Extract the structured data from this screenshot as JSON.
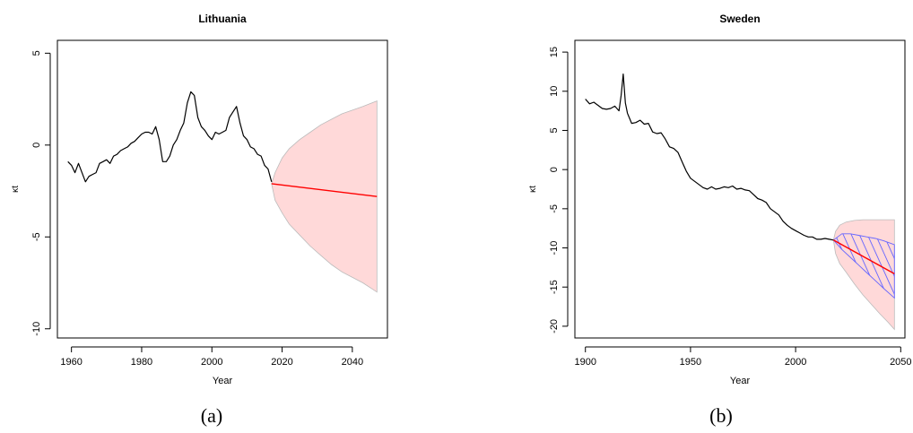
{
  "captions": {
    "a": "(a)",
    "b": "(b)"
  },
  "chart_data": [
    {
      "type": "line",
      "title": "Lithuania",
      "xlabel": "Year",
      "ylabel": "κt",
      "xlim": [
        1956,
        2050
      ],
      "ylim": [
        -10.5,
        5.7
      ],
      "xticks": [
        "1960",
        "1980",
        "2000",
        "2020",
        "2040"
      ],
      "yticks": [
        "5",
        "0",
        "-5",
        "-10"
      ],
      "grid": false,
      "series": [
        {
          "role": "observed",
          "color": "#000000",
          "x": [
            1959,
            1960,
            1961,
            1962,
            1963,
            1964,
            1965,
            1966,
            1967,
            1968,
            1969,
            1970,
            1971,
            1972,
            1973,
            1974,
            1975,
            1976,
            1977,
            1978,
            1979,
            1980,
            1981,
            1982,
            1983,
            1984,
            1985,
            1986,
            1987,
            1988,
            1989,
            1990,
            1991,
            1992,
            1993,
            1994,
            1995,
            1996,
            1997,
            1998,
            1999,
            2000,
            2001,
            2002,
            2003,
            2004,
            2005,
            2006,
            2007,
            2008,
            2009,
            2010,
            2011,
            2012,
            2013,
            2014,
            2015,
            2016,
            2017
          ],
          "y": [
            -0.9,
            -1.1,
            -1.5,
            -1.0,
            -1.5,
            -2.0,
            -1.7,
            -1.6,
            -1.5,
            -1.0,
            -0.9,
            -0.8,
            -1.0,
            -0.6,
            -0.5,
            -0.3,
            -0.2,
            -0.1,
            0.1,
            0.2,
            0.4,
            0.6,
            0.7,
            0.7,
            0.6,
            1.0,
            0.3,
            -0.9,
            -0.9,
            -0.6,
            0.0,
            0.3,
            0.8,
            1.2,
            2.3,
            2.9,
            2.7,
            1.5,
            1.0,
            0.8,
            0.5,
            0.3,
            0.7,
            0.6,
            0.7,
            0.8,
            1.5,
            1.8,
            2.1,
            1.2,
            0.5,
            0.3,
            -0.1,
            -0.2,
            -0.5,
            -0.6,
            -1.1,
            -1.3,
            -2.0
          ]
        },
        {
          "role": "forecast",
          "color": "#ff0000",
          "x": [
            2017,
            2047
          ],
          "y": [
            -2.1,
            -2.8
          ]
        }
      ],
      "band": {
        "color": "#ffd9d9",
        "x": [
          2017,
          2018,
          2020,
          2022,
          2025,
          2028,
          2031,
          2034,
          2037,
          2040,
          2043,
          2047
        ],
        "upper": [
          -2.1,
          -1.5,
          -0.7,
          -0.2,
          0.3,
          0.7,
          1.1,
          1.4,
          1.7,
          1.9,
          2.1,
          2.4
        ],
        "lower": [
          -2.1,
          -3.0,
          -3.7,
          -4.3,
          -4.9,
          -5.5,
          -6.0,
          -6.5,
          -6.9,
          -7.2,
          -7.5,
          -8.0
        ]
      }
    },
    {
      "type": "line",
      "title": "Sweden",
      "xlabel": "Year",
      "ylabel": "κt",
      "xlim": [
        1895,
        2052
      ],
      "ylim": [
        -21.5,
        16.5
      ],
      "xticks": [
        "1900",
        "1950",
        "2000",
        "2050"
      ],
      "yticks": [
        "15",
        "10",
        "5",
        "0",
        "-5",
        "-10",
        "-15",
        "-20"
      ],
      "grid": false,
      "series": [
        {
          "role": "observed",
          "color": "#000000",
          "x": [
            1900,
            1902,
            1904,
            1906,
            1908,
            1910,
            1912,
            1914,
            1916,
            1917,
            1918,
            1919,
            1920,
            1922,
            1924,
            1926,
            1928,
            1930,
            1932,
            1934,
            1936,
            1938,
            1940,
            1942,
            1944,
            1946,
            1948,
            1950,
            1952,
            1954,
            1956,
            1958,
            1960,
            1962,
            1964,
            1966,
            1968,
            1970,
            1972,
            1974,
            1976,
            1978,
            1980,
            1982,
            1984,
            1986,
            1988,
            1990,
            1992,
            1994,
            1996,
            1998,
            2000,
            2002,
            2004,
            2006,
            2008,
            2010,
            2012,
            2014,
            2016,
            2018
          ],
          "y": [
            9.0,
            8.4,
            8.6,
            8.2,
            7.8,
            7.7,
            7.8,
            8.1,
            7.5,
            9.5,
            12.2,
            8.5,
            7.2,
            5.9,
            6.0,
            6.3,
            5.8,
            5.9,
            4.8,
            4.6,
            4.7,
            3.9,
            2.9,
            2.7,
            2.2,
            1.0,
            -0.2,
            -1.1,
            -1.5,
            -1.9,
            -2.3,
            -2.5,
            -2.2,
            -2.5,
            -2.4,
            -2.2,
            -2.3,
            -2.1,
            -2.5,
            -2.4,
            -2.6,
            -2.7,
            -3.2,
            -3.7,
            -3.9,
            -4.2,
            -5.0,
            -5.4,
            -5.8,
            -6.6,
            -7.1,
            -7.5,
            -7.8,
            -8.1,
            -8.4,
            -8.6,
            -8.6,
            -8.9,
            -8.9,
            -8.8,
            -8.9,
            -9.0
          ]
        },
        {
          "role": "forecast",
          "color": "#ff0000",
          "x": [
            2018,
            2047
          ],
          "y": [
            -9.0,
            -13.3
          ]
        }
      ],
      "band": {
        "color": "#ffd9d9",
        "x": [
          2018,
          2019,
          2021,
          2024,
          2028,
          2032,
          2036,
          2040,
          2044,
          2047
        ],
        "upper": [
          -9.0,
          -7.9,
          -7.1,
          -6.7,
          -6.5,
          -6.4,
          -6.4,
          -6.4,
          -6.4,
          -6.4
        ],
        "lower": [
          -9.0,
          -10.7,
          -12.0,
          -13.1,
          -14.6,
          -16.0,
          -17.2,
          -18.4,
          -19.5,
          -20.4
        ]
      },
      "inner_band": {
        "color": "#6666ff",
        "style": "hatched",
        "x": [
          2018,
          2022,
          2026,
          2030,
          2034,
          2038,
          2042,
          2047
        ],
        "upper": [
          -9.0,
          -8.2,
          -8.2,
          -8.4,
          -8.6,
          -8.8,
          -9.1,
          -9.6
        ],
        "lower": [
          -9.0,
          -10.2,
          -11.2,
          -12.2,
          -13.2,
          -14.2,
          -15.2,
          -16.4
        ]
      }
    }
  ]
}
